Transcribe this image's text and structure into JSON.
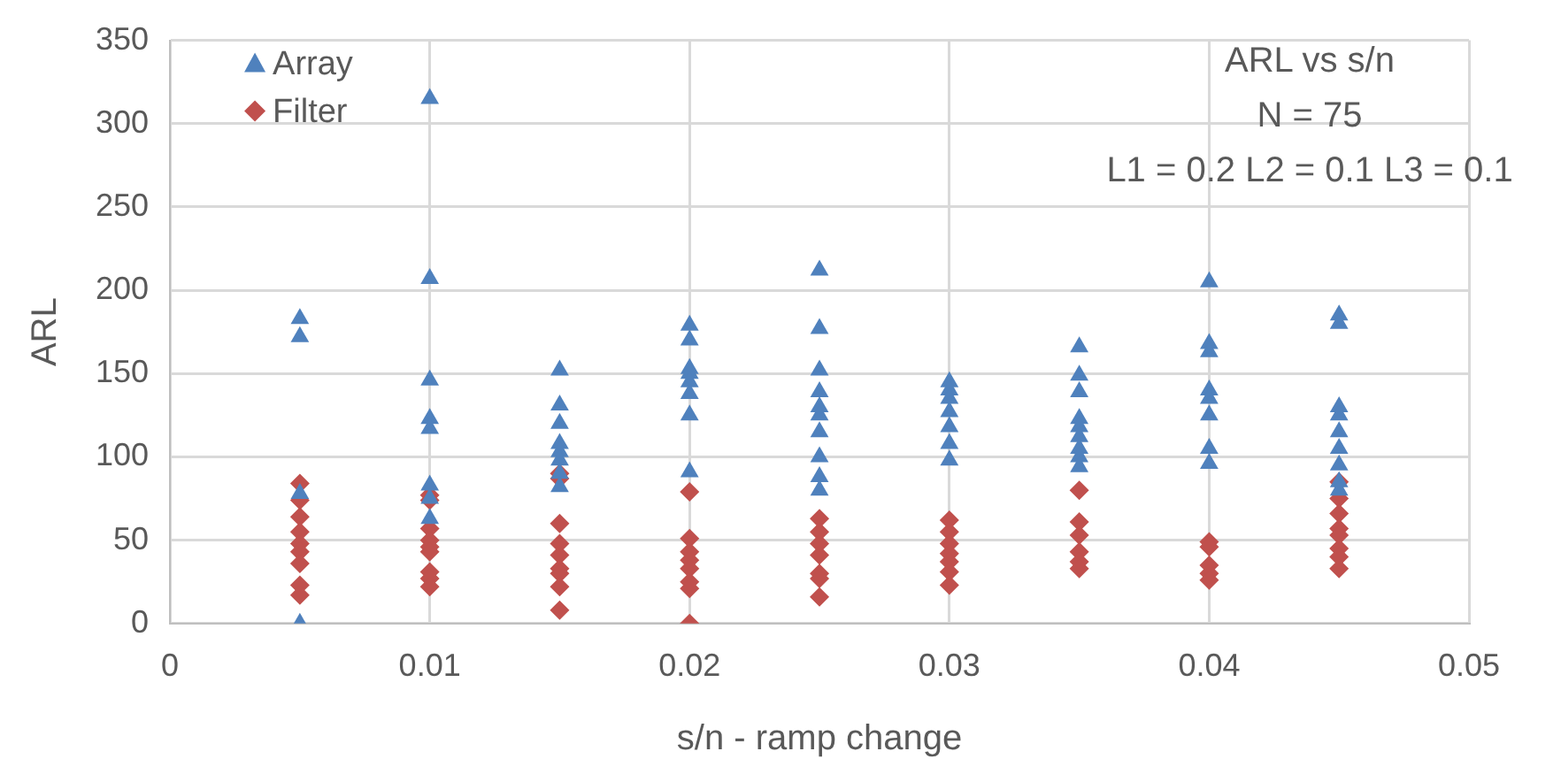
{
  "chart_data": {
    "type": "scatter",
    "title": "ARL vs s/n",
    "subtitle": "N = 75",
    "annotations": [
      "L1 = 0.2 L2 = 0.1 L3 = 0.1"
    ],
    "xlabel": "s/n - ramp change",
    "ylabel": "ARL",
    "xlim": [
      0,
      0.05
    ],
    "xticks": [
      0,
      0.01,
      0.02,
      0.03,
      0.04,
      0.05
    ],
    "ylim": [
      0,
      350
    ],
    "yticks": [
      0,
      50,
      100,
      150,
      200,
      250,
      300,
      350
    ],
    "grid": true,
    "legend": "top left",
    "series": [
      {
        "name": "Array",
        "color": "#4f81bd",
        "marker": "triangle",
        "x": [
          0.005,
          0.005,
          0.005,
          0.005,
          0.01,
          0.01,
          0.01,
          0.01,
          0.01,
          0.01,
          0.01,
          0.01,
          0.015,
          0.015,
          0.015,
          0.015,
          0.015,
          0.015,
          0.015,
          0.015,
          0.02,
          0.02,
          0.02,
          0.02,
          0.02,
          0.02,
          0.02,
          0.02,
          0.025,
          0.025,
          0.025,
          0.025,
          0.025,
          0.025,
          0.025,
          0.025,
          0.025,
          0.025,
          0.03,
          0.03,
          0.03,
          0.03,
          0.03,
          0.03,
          0.03,
          0.035,
          0.035,
          0.035,
          0.035,
          0.035,
          0.035,
          0.035,
          0.035,
          0.035,
          0.04,
          0.04,
          0.04,
          0.04,
          0.04,
          0.04,
          0.04,
          0.04,
          0.045,
          0.045,
          0.045,
          0.045,
          0.045,
          0.045,
          0.045,
          0.045,
          0.045
        ],
        "values": [
          183,
          172,
          78,
          0,
          315,
          207,
          146,
          123,
          117,
          83,
          75,
          63,
          152,
          131,
          120,
          108,
          103,
          98,
          90,
          82,
          179,
          170,
          153,
          150,
          145,
          138,
          125,
          91,
          212,
          177,
          152,
          139,
          130,
          125,
          115,
          100,
          88,
          80,
          145,
          140,
          135,
          127,
          118,
          108,
          98,
          166,
          149,
          139,
          123,
          118,
          112,
          105,
          100,
          94,
          205,
          168,
          163,
          140,
          135,
          125,
          105,
          96,
          185,
          180,
          130,
          125,
          115,
          105,
          95,
          85,
          80
        ]
      },
      {
        "name": "Filter",
        "color": "#c0504d",
        "marker": "diamond",
        "x": [
          0.005,
          0.005,
          0.005,
          0.005,
          0.005,
          0.005,
          0.005,
          0.005,
          0.005,
          0.01,
          0.01,
          0.01,
          0.01,
          0.01,
          0.01,
          0.01,
          0.01,
          0.01,
          0.015,
          0.015,
          0.015,
          0.015,
          0.015,
          0.015,
          0.015,
          0.015,
          0.015,
          0.02,
          0.02,
          0.02,
          0.02,
          0.02,
          0.02,
          0.02,
          0.02,
          0.025,
          0.025,
          0.025,
          0.025,
          0.025,
          0.025,
          0.025,
          0.03,
          0.03,
          0.03,
          0.03,
          0.03,
          0.03,
          0.03,
          0.035,
          0.035,
          0.035,
          0.035,
          0.035,
          0.035,
          0.04,
          0.04,
          0.04,
          0.04,
          0.04,
          0.045,
          0.045,
          0.045,
          0.045,
          0.045,
          0.045,
          0.045,
          0.045
        ],
        "values": [
          84,
          74,
          64,
          55,
          48,
          43,
          36,
          23,
          17,
          77,
          74,
          57,
          50,
          46,
          43,
          31,
          27,
          22,
          90,
          87,
          60,
          48,
          41,
          33,
          30,
          22,
          8,
          79,
          51,
          43,
          38,
          33,
          25,
          21,
          0,
          63,
          55,
          48,
          41,
          30,
          27,
          16,
          62,
          55,
          48,
          42,
          37,
          31,
          23,
          80,
          61,
          53,
          43,
          37,
          33,
          49,
          46,
          35,
          30,
          26,
          85,
          75,
          66,
          57,
          53,
          45,
          40,
          33
        ]
      }
    ]
  }
}
